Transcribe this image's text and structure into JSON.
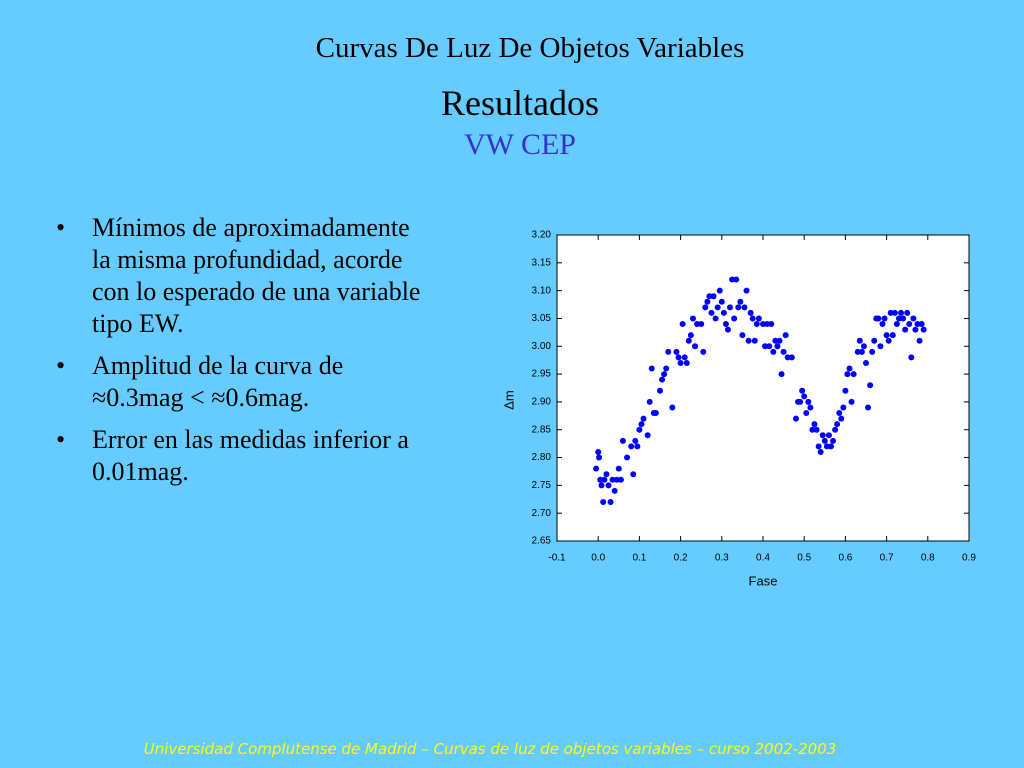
{
  "header": {
    "title": "Curvas De Luz De Objetos Variables",
    "subtitle": "Resultados",
    "object": "VW CEP"
  },
  "bullets": [
    "Mínimos de aproximadamente la misma profundidad, acorde con lo esperado de una variable tipo EW.",
    "Amplitud de la curva de ≈0.3mag < ≈0.6mag.",
    "Error en las medidas inferior a 0.01mag."
  ],
  "footer": "Universidad Complutense de Madrid – Curvas de luz de objetos variables  – curso 2002-2003",
  "chart_data": {
    "type": "scatter",
    "x_label": "Fase",
    "y_label": "Δm",
    "color": "#0000ff",
    "x": [
      -0.005,
      0.0,
      0.002,
      0.005,
      0.008,
      0.012,
      0.015,
      0.02,
      0.025,
      0.03,
      0.035,
      0.04,
      0.045,
      0.05,
      0.055,
      0.06,
      0.07,
      0.08,
      0.085,
      0.09,
      0.095,
      0.1,
      0.105,
      0.11,
      0.12,
      0.125,
      0.13,
      0.135,
      0.14,
      0.15,
      0.155,
      0.16,
      0.165,
      0.17,
      0.18,
      0.19,
      0.195,
      0.2,
      0.205,
      0.21,
      0.215,
      0.22,
      0.225,
      0.23,
      0.235,
      0.24,
      0.25,
      0.255,
      0.26,
      0.265,
      0.27,
      0.275,
      0.28,
      0.285,
      0.29,
      0.295,
      0.3,
      0.305,
      0.31,
      0.315,
      0.32,
      0.325,
      0.33,
      0.335,
      0.34,
      0.345,
      0.35,
      0.355,
      0.36,
      0.365,
      0.37,
      0.375,
      0.38,
      0.385,
      0.39,
      0.4,
      0.405,
      0.41,
      0.415,
      0.42,
      0.425,
      0.43,
      0.435,
      0.44,
      0.445,
      0.45,
      0.455,
      0.46,
      0.47,
      0.48,
      0.485,
      0.49,
      0.495,
      0.5,
      0.505,
      0.51,
      0.515,
      0.52,
      0.525,
      0.53,
      0.535,
      0.54,
      0.545,
      0.55,
      0.555,
      0.56,
      0.565,
      0.57,
      0.575,
      0.58,
      0.585,
      0.59,
      0.595,
      0.6,
      0.605,
      0.61,
      0.615,
      0.62,
      0.63,
      0.635,
      0.64,
      0.645,
      0.65,
      0.655,
      0.66,
      0.665,
      0.67,
      0.675,
      0.68,
      0.685,
      0.69,
      0.695,
      0.7,
      0.705,
      0.71,
      0.715,
      0.72,
      0.725,
      0.73,
      0.735,
      0.74,
      0.745,
      0.75,
      0.755,
      0.76,
      0.765,
      0.77,
      0.775,
      0.78,
      0.785,
      0.79
    ],
    "values": [
      2.78,
      2.81,
      2.8,
      2.76,
      2.75,
      2.72,
      2.76,
      2.77,
      2.75,
      2.72,
      2.76,
      2.74,
      2.76,
      2.78,
      2.76,
      2.83,
      2.8,
      2.82,
      2.77,
      2.83,
      2.82,
      2.85,
      2.86,
      2.87,
      2.84,
      2.9,
      2.96,
      2.88,
      2.88,
      2.92,
      2.94,
      2.95,
      2.96,
      2.99,
      2.89,
      2.99,
      2.98,
      2.97,
      3.04,
      2.98,
      2.97,
      3.01,
      3.02,
      3.05,
      3.0,
      3.04,
      3.04,
      2.99,
      3.07,
      3.08,
      3.09,
      3.06,
      3.09,
      3.05,
      3.07,
      3.1,
      3.08,
      3.06,
      3.04,
      3.03,
      3.07,
      3.12,
      3.05,
      3.12,
      3.07,
      3.08,
      3.02,
      3.07,
      3.1,
      3.01,
      3.06,
      3.05,
      3.01,
      3.04,
      3.05,
      3.04,
      3.0,
      3.04,
      3.0,
      3.04,
      2.99,
      3.01,
      3.0,
      3.01,
      2.95,
      2.99,
      3.02,
      2.98,
      2.98,
      2.87,
      2.9,
      2.9,
      2.92,
      2.91,
      2.88,
      2.9,
      2.89,
      2.85,
      2.86,
      2.85,
      2.82,
      2.81,
      2.84,
      2.83,
      2.82,
      2.84,
      2.82,
      2.83,
      2.85,
      2.86,
      2.88,
      2.87,
      2.89,
      2.92,
      2.95,
      2.96,
      2.9,
      2.95,
      2.99,
      3.01,
      2.99,
      3.0,
      2.97,
      2.89,
      2.93,
      2.99,
      3.01,
      3.05,
      3.05,
      3.0,
      3.04,
      3.05,
      3.02,
      3.01,
      3.06,
      3.02,
      3.06,
      3.04,
      3.05,
      3.06,
      3.05,
      3.03,
      3.06,
      3.04,
      2.98,
      3.05,
      3.03,
      3.04,
      3.01,
      3.04,
      3.03
    ],
    "xlim": [
      -0.1,
      0.9
    ],
    "ylim": [
      2.65,
      3.2
    ],
    "xticks": [
      -0.1,
      {
        "value": 0,
        "label": "0.0"
      },
      0.1,
      0.2,
      0.3,
      0.4,
      0.5,
      0.6,
      0.7,
      0.8,
      0.9
    ],
    "yticks": [
      2.65,
      {
        "value": 2.7,
        "label": "2.70"
      },
      2.75,
      {
        "value": 2.8,
        "label": "2.80"
      },
      2.85,
      {
        "value": 2.9,
        "label": "2.90"
      },
      2.95,
      {
        "value": 3.0,
        "label": "3.00"
      },
      3.05,
      {
        "value": 3.1,
        "label": "3.10"
      },
      3.15,
      {
        "value": 3.2,
        "label": "3.20"
      }
    ]
  }
}
